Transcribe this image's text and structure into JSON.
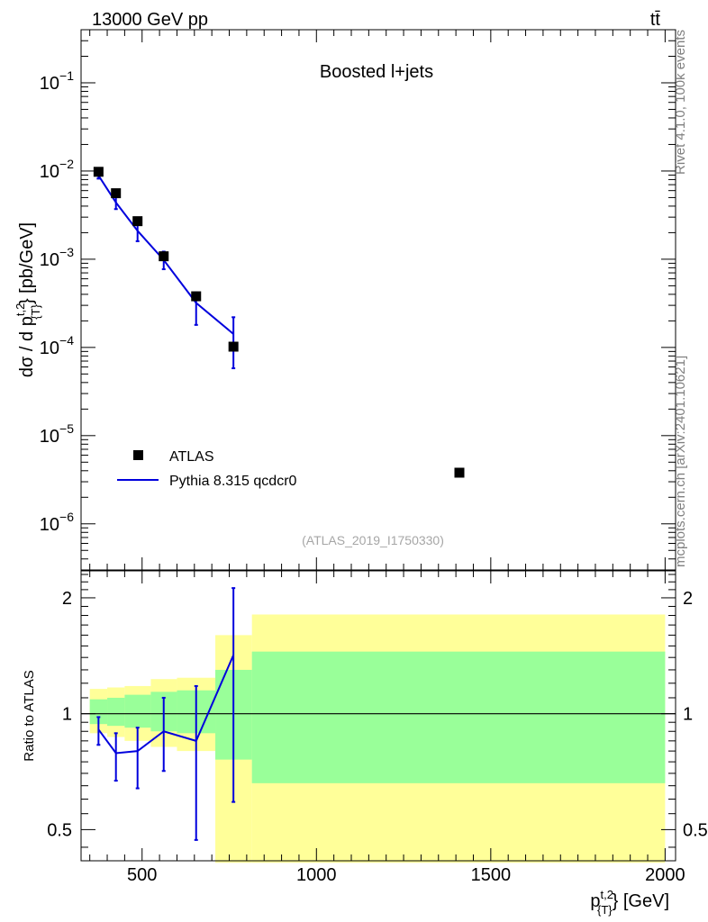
{
  "header": {
    "energy_label": "13000 GeV pp",
    "process_label": "tt̄"
  },
  "side_labels": {
    "rivet": "Rivet 4.1.0,  100k events",
    "mcplots": "mcplots.cern.ch [arXiv:2401.10621]"
  },
  "chart_data": [
    {
      "type": "scatter",
      "panel": "main",
      "title": "Boosted l+jets",
      "watermark": "(ATLAS_2019_I1750330)",
      "ylabel": {
        "main": "dσ / d p",
        "sup": "t,2",
        "sub": "{T}",
        "unit": "} [pb/GeV]"
      },
      "yscale": "log",
      "ylim": [
        3e-07,
        0.4
      ],
      "xlim": [
        325,
        2030
      ],
      "ytick_labels": [
        {
          "value": 1e-06,
          "base": "10",
          "exp": "−6"
        },
        {
          "value": 1e-05,
          "base": "10",
          "exp": "−5"
        },
        {
          "value": 0.0001,
          "base": "10",
          "exp": "−4"
        },
        {
          "value": 0.001,
          "base": "10",
          "exp": "−3"
        },
        {
          "value": 0.01,
          "base": "10",
          "exp": "−2"
        },
        {
          "value": 0.1,
          "base": "10",
          "exp": "−1"
        }
      ],
      "legend": {
        "position": "bottom-left",
        "entries": [
          {
            "label": "ATLAS",
            "marker": "square",
            "color": "#000000"
          },
          {
            "label": "Pythia 8.315 qcdcr0",
            "marker": "line",
            "color": "#0000dd"
          }
        ]
      },
      "series": [
        {
          "name": "ATLAS",
          "color": "#000000",
          "points": [
            {
              "x": 375,
              "y": 0.0098
            },
            {
              "x": 425,
              "y": 0.0056
            },
            {
              "x": 487,
              "y": 0.0027
            },
            {
              "x": 562,
              "y": 0.00108
            },
            {
              "x": 655,
              "y": 0.00038
            },
            {
              "x": 762,
              "y": 0.000102
            },
            {
              "x": 1410,
              "y": 3.8e-06
            }
          ]
        },
        {
          "name": "Pythia 8.315 qcdcr0",
          "color": "#0000dd",
          "points": [
            {
              "x": 375,
              "y": 0.0089,
              "ylo": 0.0082,
              "yhi": 0.0096
            },
            {
              "x": 425,
              "y": 0.0044,
              "ylo": 0.0037,
              "yhi": 0.0051
            },
            {
              "x": 487,
              "y": 0.0021,
              "ylo": 0.0016,
              "yhi": 0.0027
            },
            {
              "x": 562,
              "y": 0.00098,
              "ylo": 0.00077,
              "yhi": 0.00122
            },
            {
              "x": 655,
              "y": 0.00032,
              "ylo": 0.00018,
              "yhi": 0.00042
            },
            {
              "x": 762,
              "y": 0.000142,
              "ylo": 5.8e-05,
              "yhi": 0.00022
            }
          ]
        }
      ]
    },
    {
      "type": "line",
      "panel": "ratio",
      "ylabel": "Ratio to ATLAS",
      "xlabel": {
        "main": "p",
        "sup": "t,2",
        "sub": "{T}",
        "unit": "} [GeV]"
      },
      "yscale": "log",
      "ylim": [
        0.415,
        2.35
      ],
      "xlim": [
        325,
        2030
      ],
      "ytick_labels": [
        {
          "value": 0.5,
          "label": "0.5"
        },
        {
          "value": 1,
          "label": "1"
        },
        {
          "value": 2,
          "label": "2"
        }
      ],
      "xtick_labels": [
        {
          "value": 500,
          "label": "500"
        },
        {
          "value": 1000,
          "label": "1000"
        },
        {
          "value": 1500,
          "label": "1500"
        },
        {
          "value": 2000,
          "label": "2000"
        }
      ],
      "reference_line": 1,
      "bands": [
        {
          "xlo": 350,
          "xhi": 400,
          "inner": [
            0.94,
            1.09
          ],
          "outer": [
            0.89,
            1.16
          ]
        },
        {
          "xlo": 400,
          "xhi": 450,
          "inner": [
            0.93,
            1.1
          ],
          "outer": [
            0.87,
            1.17
          ]
        },
        {
          "xlo": 450,
          "xhi": 525,
          "inner": [
            0.92,
            1.12
          ],
          "outer": [
            0.85,
            1.18
          ]
        },
        {
          "xlo": 525,
          "xhi": 600,
          "inner": [
            0.9,
            1.14
          ],
          "outer": [
            0.82,
            1.23
          ]
        },
        {
          "xlo": 600,
          "xhi": 710,
          "inner": [
            0.89,
            1.15
          ],
          "outer": [
            0.8,
            1.24
          ]
        },
        {
          "xlo": 710,
          "xhi": 815,
          "inner": [
            0.76,
            1.3
          ],
          "outer": [
            0.41,
            1.6
          ]
        },
        {
          "xlo": 815,
          "xhi": 2000,
          "inner": [
            0.66,
            1.45
          ],
          "outer": [
            0.41,
            1.81
          ]
        }
      ],
      "series": [
        {
          "name": "Pythia 8.315 qcdcr0",
          "color": "#0000dd",
          "points": [
            {
              "x": 375,
              "y": 0.91,
              "ylo": 0.83,
              "yhi": 0.98
            },
            {
              "x": 425,
              "y": 0.79,
              "ylo": 0.67,
              "yhi": 0.89
            },
            {
              "x": 487,
              "y": 0.8,
              "ylo": 0.64,
              "yhi": 0.92
            },
            {
              "x": 562,
              "y": 0.9,
              "ylo": 0.71,
              "yhi": 1.1
            },
            {
              "x": 655,
              "y": 0.85,
              "ylo": 0.47,
              "yhi": 1.18
            },
            {
              "x": 762,
              "y": 1.42,
              "ylo": 0.59,
              "yhi": 2.12
            }
          ]
        }
      ]
    }
  ]
}
